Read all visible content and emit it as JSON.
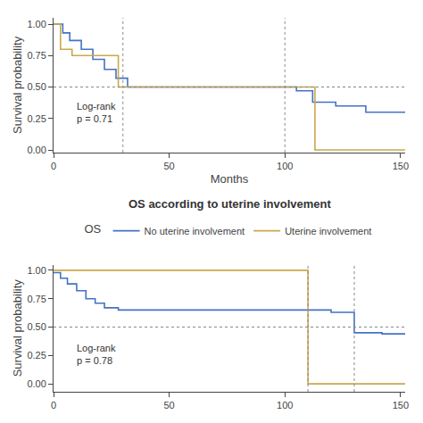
{
  "chart_data": [
    {
      "type": "step",
      "xlabel": "Months",
      "ylabel": "Survival probability",
      "annotations": [
        "Log-rank\np = 0.71"
      ],
      "xlim": [
        0,
        152
      ],
      "ylim": [
        -0.02,
        1.05
      ],
      "xticks": [
        0,
        50,
        100,
        150
      ],
      "yticks": [
        {
          "value": 0.0,
          "label": "0.00"
        },
        {
          "value": 0.25,
          "label": "0.25"
        },
        {
          "value": 0.5,
          "label": "0.50"
        },
        {
          "value": 0.75,
          "label": "0.75"
        },
        {
          "value": 1.0,
          "label": "1.00"
        }
      ],
      "hlines": [
        0.5
      ],
      "vlines": [
        30,
        100
      ],
      "grid": false,
      "series": [
        {
          "color": "#4472C4",
          "x": [
            0,
            4,
            7,
            12,
            17,
            22,
            27,
            32,
            95,
            105,
            112,
            122,
            135,
            152
          ],
          "values": [
            1.0,
            0.93,
            0.87,
            0.8,
            0.72,
            0.64,
            0.57,
            0.5,
            0.5,
            0.47,
            0.38,
            0.35,
            0.3,
            0.3
          ]
        },
        {
          "color": "#C9A84C",
          "x": [
            0,
            3,
            8,
            15,
            28,
            110,
            113,
            152
          ],
          "values": [
            1.0,
            0.8,
            0.75,
            0.75,
            0.5,
            0.5,
            0.0,
            0.0
          ]
        }
      ]
    },
    {
      "type": "step",
      "title": "OS according to uterine involvement",
      "legend_title": "OS",
      "ylabel": "Survival probability",
      "annotations": [
        "Log-rank\np = 0.78"
      ],
      "xlim": [
        0,
        152
      ],
      "ylim": [
        -0.07,
        1.05
      ],
      "xticks": [
        0,
        50,
        100,
        150
      ],
      "yticks": [
        {
          "value": 0.0,
          "label": "0.00"
        },
        {
          "value": 0.25,
          "label": "0.25"
        },
        {
          "value": 0.5,
          "label": "0.50"
        },
        {
          "value": 0.75,
          "label": "0.75"
        },
        {
          "value": 1.0,
          "label": "1.00"
        }
      ],
      "hlines": [
        0.5
      ],
      "vlines": [
        110,
        130
      ],
      "grid": false,
      "series": [
        {
          "name": "No uterine involvement",
          "color": "#4472C4",
          "x": [
            0,
            3,
            6,
            10,
            14,
            18,
            22,
            28,
            35,
            110,
            120,
            130,
            142,
            152
          ],
          "values": [
            0.98,
            0.93,
            0.88,
            0.82,
            0.75,
            0.71,
            0.67,
            0.65,
            0.65,
            0.65,
            0.63,
            0.45,
            0.44,
            0.44
          ]
        },
        {
          "name": "Uterine involvement",
          "color": "#C9A84C",
          "x": [
            0,
            110,
            110,
            152
          ],
          "values": [
            1.0,
            1.0,
            0.0,
            0.0
          ]
        }
      ]
    }
  ]
}
